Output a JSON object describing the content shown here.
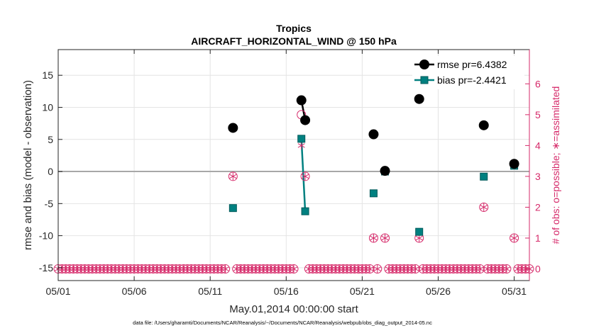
{
  "chart_data": {
    "type": "scatter",
    "title": "Tropics",
    "subtitle": "AIRCRAFT_HORIZONTAL_WIND @ 150 hPa",
    "xlabel": "May.01,2014 00:00:00 start",
    "ylabel": "rmse and bias (model - observation)",
    "y2label": "# of obs: o=possible; ∗=assimilated",
    "footnote": "data file: /Users/gharamti/Documents/NCAR/Reanalysis/~/Documents/NCAR/Reanalysis/webpub/obs_diag_output_2014-05.nc",
    "xlim": [
      1,
      32
    ],
    "ylim": [
      -17,
      19
    ],
    "y2lim": [
      -0.378,
      7.11
    ],
    "x_ticks": [
      {
        "x": 1,
        "label": "05/01"
      },
      {
        "x": 6,
        "label": "05/06"
      },
      {
        "x": 11,
        "label": "05/11"
      },
      {
        "x": 16,
        "label": "05/16"
      },
      {
        "x": 21,
        "label": "05/21"
      },
      {
        "x": 26,
        "label": "05/26"
      },
      {
        "x": 31,
        "label": "05/31"
      }
    ],
    "y_ticks": [
      {
        "y": -15,
        "label": "-15"
      },
      {
        "y": -10,
        "label": "-10"
      },
      {
        "y": -5,
        "label": "-5"
      },
      {
        "y": 0,
        "label": "0"
      },
      {
        "y": 5,
        "label": "5"
      },
      {
        "y": 10,
        "label": "10"
      },
      {
        "y": 15,
        "label": "15"
      }
    ],
    "y2_ticks": [
      {
        "y": 0,
        "label": "0"
      },
      {
        "y": 1,
        "label": "1"
      },
      {
        "y": 2,
        "label": "2"
      },
      {
        "y": 3,
        "label": "3"
      },
      {
        "y": 4,
        "label": "4"
      },
      {
        "y": 5,
        "label": "5"
      },
      {
        "y": 6,
        "label": "6"
      }
    ],
    "grid": true,
    "legend": "top-right",
    "series": [
      {
        "name": "rmse pr=6.4382",
        "color": "#000000",
        "marker": "circle",
        "points": [
          [
            12.5,
            6.8
          ],
          [
            17,
            11.1
          ],
          [
            17.25,
            8.0
          ],
          [
            21.75,
            5.8
          ],
          [
            22.5,
            0.1
          ],
          [
            24.75,
            11.3
          ],
          [
            29,
            7.2
          ],
          [
            31,
            1.2
          ]
        ],
        "segments": [
          [
            1,
            2
          ]
        ]
      },
      {
        "name": "bias pr=-2.4421",
        "color": "#008080",
        "marker": "square",
        "points": [
          [
            12.5,
            -5.7
          ],
          [
            17,
            5.1
          ],
          [
            17.25,
            -6.2
          ],
          [
            21.75,
            -3.4
          ],
          [
            22.5,
            0.0
          ],
          [
            24.75,
            -9.4
          ],
          [
            29,
            -0.8
          ],
          [
            31,
            0.9
          ]
        ],
        "segments": [
          [
            1,
            2
          ]
        ]
      },
      {
        "name": "obs possible",
        "color": "#d62a6a",
        "axis": "right",
        "marker": "open-circle",
        "points": [
          [
            12.5,
            3
          ],
          [
            17,
            5
          ],
          [
            17.25,
            3
          ],
          [
            21.75,
            1
          ],
          [
            22.5,
            1
          ],
          [
            24.75,
            1
          ],
          [
            29,
            2
          ],
          [
            31,
            1
          ]
        ]
      },
      {
        "name": "obs assimilated",
        "color": "#d62a6a",
        "axis": "right",
        "marker": "asterisk",
        "points": [
          [
            12.5,
            3
          ],
          [
            17,
            4
          ],
          [
            17.25,
            3
          ],
          [
            21.75,
            1
          ],
          [
            22.5,
            1
          ],
          [
            24.75,
            1
          ],
          [
            29,
            2
          ],
          [
            31,
            1
          ]
        ]
      }
    ],
    "zero_obs_x": [
      1,
      1.25,
      1.5,
      1.75,
      2,
      2.25,
      2.5,
      2.75,
      3,
      3.25,
      3.5,
      3.75,
      4,
      4.25,
      4.5,
      4.75,
      5,
      5.25,
      5.5,
      5.75,
      6,
      6.25,
      6.5,
      6.75,
      7,
      7.25,
      7.5,
      7.75,
      8,
      8.25,
      8.5,
      8.75,
      9,
      9.25,
      9.5,
      9.75,
      10,
      10.25,
      10.5,
      10.75,
      11,
      11.25,
      11.5,
      11.75,
      12,
      12.75,
      13,
      13.25,
      13.5,
      13.75,
      14,
      14.25,
      14.5,
      14.75,
      15,
      15.25,
      15.5,
      15.75,
      16,
      16.25,
      16.5,
      17.5,
      17.75,
      18,
      18.25,
      18.5,
      18.75,
      19,
      19.25,
      19.5,
      19.75,
      20,
      20.25,
      20.5,
      20.75,
      21,
      21.25,
      21.5,
      22,
      22.75,
      23,
      23.25,
      23.5,
      23.75,
      24,
      24.25,
      24.5,
      25,
      25.25,
      25.5,
      25.75,
      26,
      26.25,
      26.5,
      26.75,
      27,
      27.25,
      27.5,
      27.75,
      28,
      28.25,
      28.5,
      28.75,
      29.25,
      29.5,
      29.75,
      30,
      30.25,
      30.5,
      31.25,
      31.5,
      31.75,
      32
    ]
  }
}
